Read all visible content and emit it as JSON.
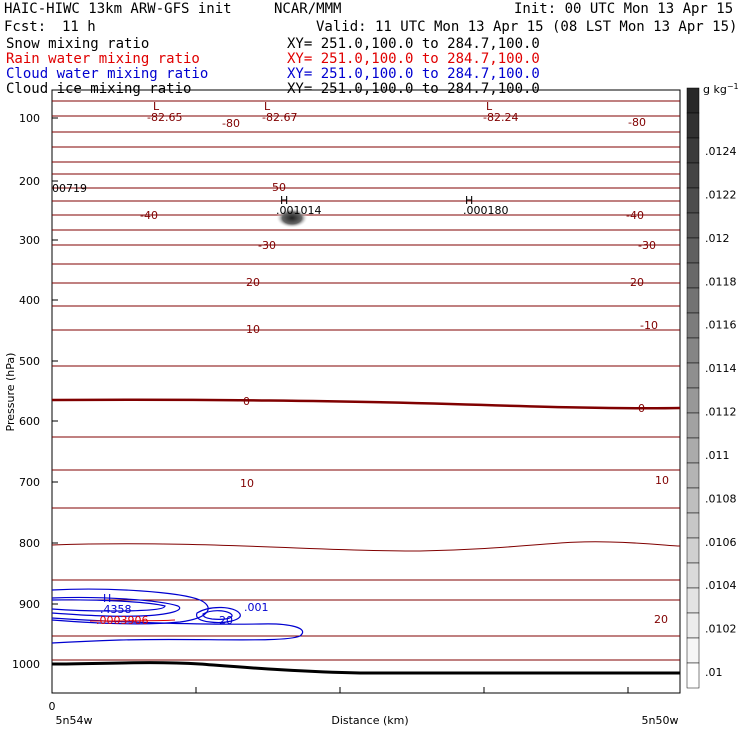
{
  "header": {
    "title": "HAIC-HIWC 13km ARW-GFS init",
    "org": "NCAR/MMM",
    "init": "Init: 00 UTC Mon 13 Apr 15",
    "fcst_label": "Fcst:",
    "fcst_value": "11 h",
    "valid": "Valid: 11 UTC Mon 13 Apr 15 (08 LST Mon 13 Apr 15)"
  },
  "fields": [
    {
      "name": "Snow mixing ratio",
      "xy": "XY= 251.0,100.0 to 284.7,100.0",
      "color": "#000000"
    },
    {
      "name": "Rain water mixing ratio",
      "xy": "XY= 251.0,100.0 to 284.7,100.0",
      "color": "#e00000"
    },
    {
      "name": "Cloud water mixing ratio",
      "xy": "XY= 251.0,100.0 to 284.7,100.0",
      "color": "#0000d0"
    },
    {
      "name": "Cloud ice mixing ratio",
      "xy": "XY= 251.0,100.0 to 284.7,100.0",
      "color": "#000000"
    }
  ],
  "chart_data": {
    "type": "contour",
    "xlabel": "Distance (km)",
    "ylabel": "Pressure (hPa)",
    "x_ticks": [
      "0"
    ],
    "x_endpoints": [
      "5n54w",
      "5n50w"
    ],
    "y_ticks": [
      "100",
      "200",
      "300",
      "400",
      "500",
      "600",
      "700",
      "800",
      "900",
      "1000"
    ],
    "ylim": [
      1000,
      100
    ],
    "colorbar": {
      "unit": "g kg",
      "unit_exp": "−1",
      "labels": [
        ".0124",
        ".0122",
        ".012",
        ".0118",
        ".0116",
        ".0114",
        ".0112",
        ".011",
        ".0108",
        ".0106",
        ".0104",
        ".0102",
        ".01"
      ]
    },
    "temperature_labels": [
      "-82.65",
      "-80",
      "-82.67",
      "-82.24",
      "-80",
      "-50",
      "-40",
      "-40",
      "-30",
      "-30",
      "-20",
      "-20",
      "-10",
      "-10",
      "0",
      "0",
      "10",
      "10",
      "20"
    ],
    "low_markers": [
      "L",
      "L",
      "L"
    ],
    "high_markers": [
      {
        "mark": "H",
        "value": ".001014"
      },
      {
        "mark": "H",
        "value": ".000180"
      },
      {
        "mark": "H",
        "value": ".4358"
      }
    ],
    "annotations": {
      "left_edge_value": "00719",
      "cloud_water_label": ".001",
      "cloud_water_inner": "20",
      "rain_label": ".0003906"
    }
  },
  "colors": {
    "isotherm": "#800000",
    "cloud_water": "#0000d0",
    "rain": "#e00000",
    "ground": "#000000"
  }
}
